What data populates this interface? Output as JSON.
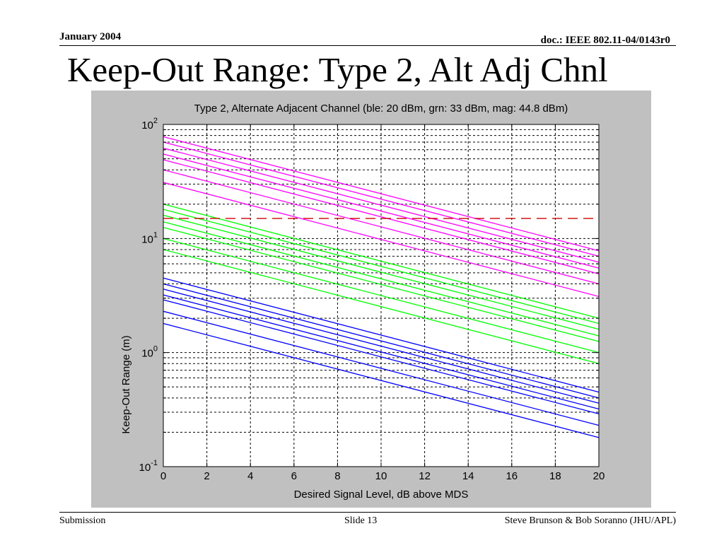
{
  "slide": {
    "date": "January 2004",
    "doc_id": "doc.: IEEE 802.11-04/0143r0",
    "title": "Keep-Out Range: Type 2, Alt Adj Chnl",
    "footer_left": "Submission",
    "footer_center": "Slide 13",
    "footer_right": "Steve Brunson & Bob Soranno (JHU/APL)"
  },
  "colors": {
    "panel": "#c0c0c0",
    "plot_bg": "#ffffff",
    "blue": "#0000ff",
    "green": "#00ff00",
    "magenta": "#ff00ff",
    "threshold": "#cc0000"
  },
  "chart_data": {
    "type": "line",
    "title": "Type 2, Alternate Adjacent Channel (ble: 20 dBm, grn: 33 dBm, mag: 44.8 dBm)",
    "xlabel": "Desired Signal Level, dB above MDS",
    "ylabel": "Keep-Out Range (m)",
    "xlim": [
      0,
      20
    ],
    "ylim": [
      0.1,
      100
    ],
    "yscale": "log",
    "grid": true,
    "grid_style": "dotted",
    "x_ticks": [
      "0",
      "2",
      "4",
      "6",
      "8",
      "10",
      "12",
      "14",
      "16",
      "18",
      "20"
    ],
    "y_ticks": [
      {
        "base": "10",
        "exp": "-1",
        "value": 0.1
      },
      {
        "base": "10",
        "exp": "0",
        "value": 1
      },
      {
        "base": "10",
        "exp": "1",
        "value": 10
      },
      {
        "base": "10",
        "exp": "2",
        "value": 100
      }
    ],
    "series_groups": [
      {
        "color": "#0000ff",
        "lines": [
          {
            "x": [
              0,
              20
            ],
            "y": [
              4.5,
              0.45
            ]
          },
          {
            "x": [
              0,
              20
            ],
            "y": [
              4.0,
              0.4
            ]
          },
          {
            "x": [
              0,
              20
            ],
            "y": [
              3.6,
              0.36
            ]
          },
          {
            "x": [
              0,
              20
            ],
            "y": [
              3.2,
              0.32
            ]
          },
          {
            "x": [
              0,
              20
            ],
            "y": [
              2.9,
              0.29
            ]
          },
          {
            "x": [
              0,
              20
            ],
            "y": [
              2.3,
              0.23
            ]
          },
          {
            "x": [
              0,
              20
            ],
            "y": [
              1.8,
              0.18
            ]
          }
        ]
      },
      {
        "color": "#00ff00",
        "lines": [
          {
            "x": [
              0,
              20
            ],
            "y": [
              20,
              2.0
            ]
          },
          {
            "x": [
              0,
              20
            ],
            "y": [
              18,
              1.8
            ]
          },
          {
            "x": [
              0,
              20
            ],
            "y": [
              16,
              1.6
            ]
          },
          {
            "x": [
              0,
              20
            ],
            "y": [
              14,
              1.4
            ]
          },
          {
            "x": [
              0,
              20
            ],
            "y": [
              12.5,
              1.25
            ]
          },
          {
            "x": [
              0,
              20
            ],
            "y": [
              10,
              1.0
            ]
          },
          {
            "x": [
              0,
              20
            ],
            "y": [
              8,
              0.8
            ]
          }
        ]
      },
      {
        "color": "#ff00ff",
        "lines": [
          {
            "x": [
              0,
              20
            ],
            "y": [
              78,
              7.8
            ]
          },
          {
            "x": [
              0,
              20
            ],
            "y": [
              70,
              7.0
            ]
          },
          {
            "x": [
              0,
              20
            ],
            "y": [
              62,
              6.2
            ]
          },
          {
            "x": [
              0,
              20
            ],
            "y": [
              55,
              5.5
            ]
          },
          {
            "x": [
              0,
              20
            ],
            "y": [
              49,
              4.9
            ]
          },
          {
            "x": [
              0,
              20
            ],
            "y": [
              40,
              4.0
            ]
          },
          {
            "x": [
              0,
              20
            ],
            "y": [
              31,
              3.1
            ]
          }
        ]
      }
    ],
    "threshold": {
      "color": "#cc0000",
      "style": "dashed",
      "y": 15
    }
  }
}
